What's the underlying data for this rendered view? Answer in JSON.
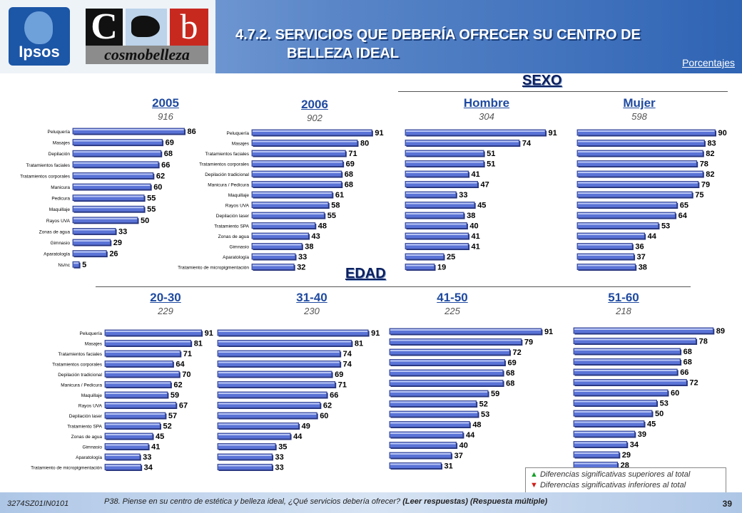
{
  "header": {
    "title_line1": "4.7.2. SERVICIOS QUE DEBERÍA OFRECER SU CENTRO DE",
    "title_line2": "BELLEZA IDEAL",
    "units_label": "Porcentajes",
    "logos": {
      "ipsos": "Ipsos",
      "cb_c": "C",
      "cb_b": "b",
      "cosmo": "cosmobelleza"
    }
  },
  "sections": {
    "sexo": "SEXO",
    "edad": "EDAD"
  },
  "colors": {
    "bar": "#5a73d6",
    "bar_dark": "#27357f",
    "bar_light": "#b9c6f4",
    "title_blue": "#1f4aa0",
    "section_navy": "#0b1f5e"
  },
  "chart_data": [
    {
      "type": "bar",
      "orientation": "horizontal",
      "title": "2005",
      "base": "916",
      "categories": [
        "Peluquería",
        "Masajes",
        "Depilación",
        "Tratamientos faciales",
        "Tratamientos corporales",
        "Manicura",
        "Pedicura",
        "Maquillaje",
        "Rayos UVA",
        "Zonas de agua",
        "Gimnasio",
        "Aparatología",
        "Ns/nc"
      ],
      "values": [
        86,
        69,
        68,
        66,
        62,
        60,
        55,
        55,
        50,
        33,
        29,
        26,
        5
      ]
    },
    {
      "type": "bar",
      "orientation": "horizontal",
      "title": "2006",
      "base": "902",
      "categories": [
        "Peluquería",
        "Masajes",
        "Tratamientos faciales",
        "Tratamientos corporales",
        "Depilación tradicional",
        "Manicura / Pedicura",
        "Maquillaje",
        "Rayos UVA",
        "Depilación laser",
        "Tratamiento SPA",
        "Zonas de agua",
        "Gimnasio",
        "Aparatología",
        "Tratamiento de micropigmentación"
      ],
      "values": [
        91,
        80,
        71,
        69,
        68,
        68,
        61,
        58,
        55,
        48,
        43,
        38,
        33,
        32
      ]
    },
    {
      "type": "bar",
      "orientation": "horizontal",
      "title": "Hombre",
      "base": "304",
      "values": [
        91,
        74,
        51,
        51,
        41,
        47,
        33,
        45,
        38,
        40,
        41,
        41,
        25,
        19
      ]
    },
    {
      "type": "bar",
      "orientation": "horizontal",
      "title": "Mujer",
      "base": "598",
      "values": [
        90,
        83,
        82,
        78,
        82,
        79,
        75,
        65,
        64,
        53,
        44,
        36,
        37,
        38
      ]
    },
    {
      "type": "bar",
      "orientation": "horizontal",
      "title": "20-30",
      "base": "229",
      "categories": [
        "Peluquería",
        "Masajes",
        "Tratamientos faciales",
        "Tratamientos corporales",
        "Depilación tradicional",
        "Manicura / Pedicura",
        "Maquillaje",
        "Rayos UVA",
        "Depilación laser",
        "Tratamiento SPA",
        "Zonas de agua",
        "Gimnasio",
        "Aparatología",
        "Tratamiento de micropigmentación"
      ],
      "values": [
        91,
        81,
        71,
        64,
        70,
        62,
        59,
        67,
        57,
        52,
        45,
        41,
        33,
        34
      ]
    },
    {
      "type": "bar",
      "orientation": "horizontal",
      "title": "31-40",
      "base": "230",
      "values": [
        91,
        81,
        74,
        74,
        69,
        71,
        66,
        62,
        60,
        49,
        44,
        35,
        33,
        33
      ]
    },
    {
      "type": "bar",
      "orientation": "horizontal",
      "title": "41-50",
      "base": "225",
      "values": [
        91,
        79,
        72,
        69,
        68,
        68,
        59,
        52,
        53,
        48,
        44,
        40,
        37,
        31
      ]
    },
    {
      "type": "bar",
      "orientation": "horizontal",
      "title": "51-60",
      "base": "218",
      "values": [
        89,
        78,
        68,
        68,
        66,
        72,
        60,
        53,
        50,
        45,
        39,
        34,
        29,
        28
      ]
    }
  ],
  "legend": {
    "up_symbol": "▲",
    "up_text": "Diferencias significativas superiores al total",
    "down_symbol": "▼",
    "down_text": "Diferencias significativas inferiores al total"
  },
  "footer": {
    "code": "3274SZ01IN0101",
    "question": "P38.  Piense en su centro de estética y belleza ideal, ¿Qué servicios debería ofrecer?",
    "instructions": "(Leer respuestas)  (Respuesta múltiple)",
    "page": "39"
  }
}
